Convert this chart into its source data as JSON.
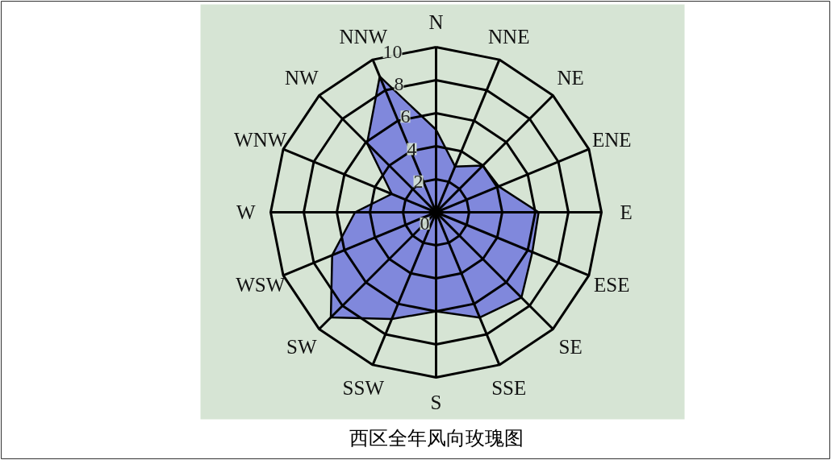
{
  "chart_data": {
    "type": "radar",
    "title": "西区全年风向玫瑰图",
    "categories": [
      "N",
      "NNE",
      "NE",
      "ENE",
      "E",
      "ESE",
      "SE",
      "SSE",
      "S",
      "SSW",
      "SW",
      "WSW",
      "W",
      "WNW",
      "NW",
      "NNW"
    ],
    "series": [
      {
        "color": "#8088dc",
        "values": [
          5,
          3,
          4,
          4.1,
          6.2,
          6.3,
          7.3,
          6.9,
          6,
          7,
          9,
          6.8,
          4.9,
          2.9,
          5.9,
          8.9
        ]
      }
    ],
    "ylim": [
      0,
      10
    ],
    "yticks": [
      0,
      2,
      4,
      6,
      8,
      10
    ],
    "grid": true
  }
}
